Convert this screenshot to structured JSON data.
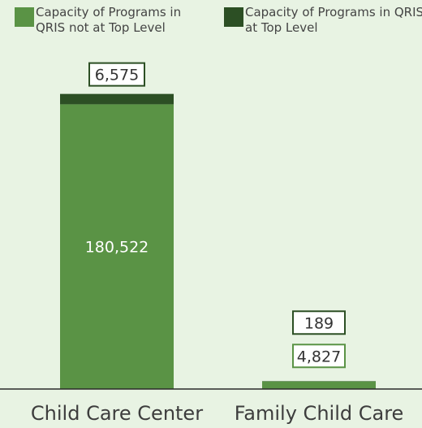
{
  "chart_data": {
    "type": "bar",
    "stacked": true,
    "categories": [
      "Child Care Center",
      "Family Child Care"
    ],
    "series": [
      {
        "name": "Capacity of Programs in QRIS not at Top Level",
        "values": [
          180522,
          4827
        ],
        "color": "#5a9345"
      },
      {
        "name": "Capacity of Programs in QRIS at Top Level",
        "values": [
          6575,
          189
        ],
        "color": "#2c4f24"
      }
    ],
    "data_labels": [
      [
        "180,522",
        "4,827"
      ],
      [
        "6,575",
        "189"
      ]
    ],
    "ylim": [
      0,
      190000
    ],
    "legend_position": "top",
    "grid": false,
    "background": "#e8f3e3"
  }
}
